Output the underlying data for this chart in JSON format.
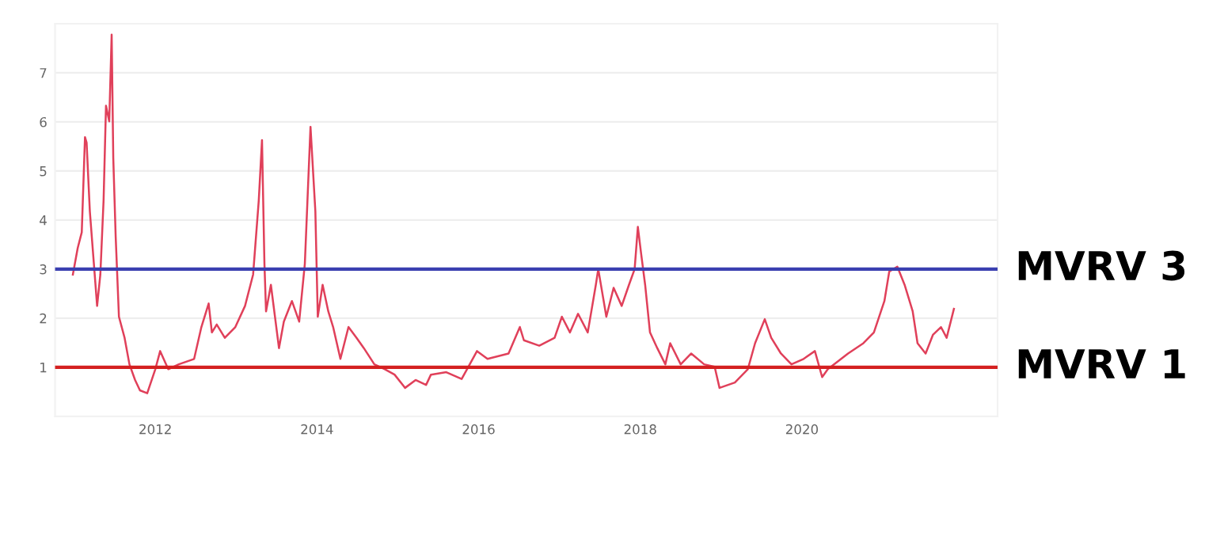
{
  "chart_data": {
    "type": "line",
    "x": [
      2010.98,
      2011.04,
      2011.09,
      2011.13,
      2011.15,
      2011.19,
      2011.24,
      2011.28,
      2011.32,
      2011.36,
      2011.39,
      2011.43,
      2011.46,
      2011.48,
      2011.51,
      2011.55,
      2011.62,
      2011.68,
      2011.75,
      2011.81,
      2011.9,
      2012.0,
      2012.06,
      2012.16,
      2012.29,
      2012.48,
      2012.57,
      2012.66,
      2012.7,
      2012.76,
      2012.86,
      2012.99,
      2013.11,
      2013.21,
      2013.28,
      2013.32,
      2013.35,
      2013.37,
      2013.43,
      2013.53,
      2013.59,
      2013.69,
      2013.78,
      2013.85,
      2013.92,
      2013.98,
      2014.01,
      2014.07,
      2014.14,
      2014.2,
      2014.29,
      2014.39,
      2014.49,
      2014.58,
      2014.71,
      2014.84,
      2014.96,
      2015.09,
      2015.22,
      2015.35,
      2015.41,
      2015.6,
      2015.79,
      2015.89,
      2015.98,
      2016.11,
      2016.37,
      2016.51,
      2016.56,
      2016.75,
      2016.94,
      2017.03,
      2017.13,
      2017.23,
      2017.35,
      2017.45,
      2017.48,
      2017.58,
      2017.67,
      2017.77,
      2017.86,
      2017.93,
      2017.97,
      2018.01,
      2018.06,
      2018.12,
      2018.21,
      2018.31,
      2018.37,
      2018.5,
      2018.63,
      2018.79,
      2018.92,
      2018.98,
      2019.17,
      2019.33,
      2019.42,
      2019.54,
      2019.62,
      2019.74,
      2019.87,
      2020.02,
      2020.16,
      2020.25,
      2020.32,
      2020.57,
      2020.76,
      2020.89,
      2021.02,
      2021.08,
      2021.18,
      2021.27,
      2021.37,
      2021.43,
      2021.53,
      2021.62,
      2021.72,
      2021.79,
      2021.88
    ],
    "series": [
      {
        "color": "#e0405a",
        "values": [
          2.89,
          3.43,
          3.75,
          5.69,
          5.58,
          4.18,
          3.11,
          2.25,
          2.89,
          4.4,
          6.33,
          6.01,
          7.78,
          5.26,
          3.65,
          2.03,
          1.6,
          1.06,
          0.74,
          0.53,
          0.47,
          0.96,
          1.33,
          0.96,
          1.06,
          1.17,
          1.82,
          2.3,
          1.71,
          1.87,
          1.6,
          1.82,
          2.25,
          2.89,
          4.4,
          5.63,
          3.11,
          2.14,
          2.68,
          1.39,
          1.93,
          2.35,
          1.93,
          3.11,
          5.9,
          4.18,
          2.03,
          2.68,
          2.14,
          1.82,
          1.17,
          1.82,
          1.6,
          1.39,
          1.06,
          0.96,
          0.85,
          0.58,
          0.74,
          0.64,
          0.85,
          0.9,
          0.76,
          1.06,
          1.33,
          1.17,
          1.28,
          1.82,
          1.55,
          1.44,
          1.6,
          2.03,
          1.71,
          2.09,
          1.71,
          2.68,
          3.0,
          2.03,
          2.62,
          2.25,
          2.68,
          3.0,
          3.86,
          3.32,
          2.68,
          1.71,
          1.39,
          1.06,
          1.49,
          1.06,
          1.28,
          1.06,
          1.01,
          0.58,
          0.69,
          0.96,
          1.49,
          1.98,
          1.6,
          1.28,
          1.06,
          1.17,
          1.33,
          0.8,
          0.96,
          1.28,
          1.49,
          1.71,
          2.35,
          2.95,
          3.05,
          2.68,
          2.14,
          1.49,
          1.28,
          1.66,
          1.82,
          1.6,
          2.19
        ]
      }
    ],
    "xlim": [
      2010.76,
      2022.42
    ],
    "xticks": [
      2012,
      2014,
      2016,
      2018,
      2020
    ],
    "ylim": [
      0,
      8
    ],
    "yticks": [
      1,
      2,
      3,
      4,
      5,
      6,
      7
    ],
    "grid": "y",
    "marker": "none",
    "line_style": "solid",
    "ref_lines": [
      {
        "axis": "y",
        "value": 3,
        "label": "MVRV 3",
        "color": "#3a3fb0"
      },
      {
        "axis": "y",
        "value": 1,
        "label": "MVRV 1",
        "color": "#d42020"
      }
    ]
  }
}
